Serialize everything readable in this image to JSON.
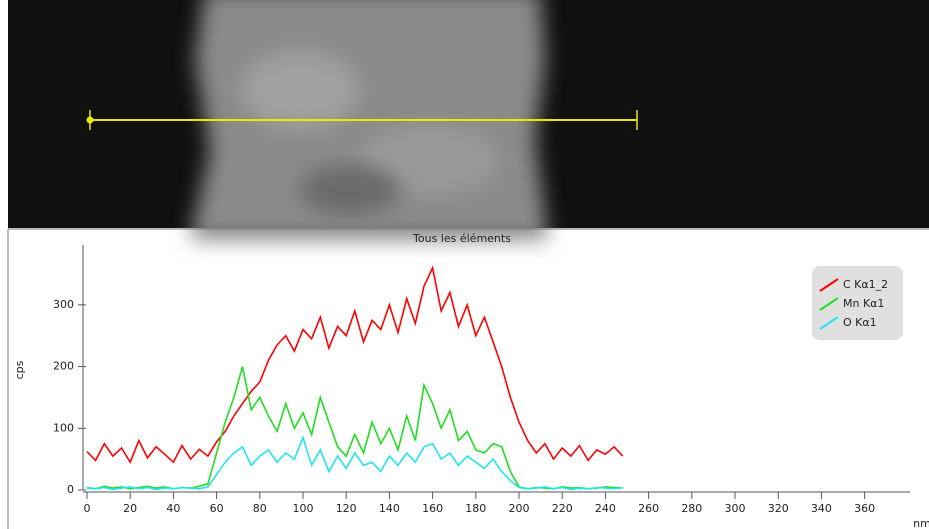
{
  "chart_data": {
    "type": "line",
    "title": "Tous les éléments",
    "y_label": "cps",
    "x_label": "nm",
    "x": [
      0,
      4,
      8,
      12,
      16,
      20,
      24,
      28,
      32,
      36,
      40,
      44,
      48,
      52,
      56,
      60,
      64,
      68,
      72,
      76,
      80,
      84,
      88,
      92,
      96,
      100,
      104,
      108,
      112,
      116,
      120,
      124,
      128,
      132,
      136,
      140,
      144,
      148,
      152,
      156,
      160,
      164,
      168,
      172,
      176,
      180,
      184,
      188,
      192,
      196,
      200,
      204,
      208,
      212,
      216,
      220,
      224,
      228,
      232,
      236,
      240,
      244,
      248
    ],
    "series": [
      {
        "name": "C Kα1_2",
        "color": "#ff0000",
        "values": [
          62,
          48,
          75,
          55,
          68,
          45,
          80,
          52,
          70,
          58,
          45,
          72,
          50,
          66,
          55,
          78,
          95,
          120,
          140,
          160,
          175,
          210,
          235,
          250,
          225,
          260,
          245,
          280,
          230,
          265,
          250,
          290,
          240,
          275,
          260,
          300,
          255,
          310,
          270,
          330,
          360,
          290,
          320,
          265,
          300,
          250,
          280,
          240,
          200,
          150,
          110,
          80,
          60,
          75,
          50,
          68,
          55,
          72,
          48,
          65,
          58,
          70,
          55
        ]
      },
      {
        "name": "Mn Kα1",
        "color": "#22dd22",
        "values": [
          4,
          2,
          6,
          3,
          5,
          2,
          4,
          6,
          3,
          5,
          2,
          4,
          3,
          6,
          10,
          60,
          110,
          150,
          200,
          130,
          150,
          120,
          95,
          140,
          100,
          125,
          90,
          150,
          110,
          70,
          55,
          90,
          60,
          110,
          75,
          100,
          65,
          120,
          80,
          170,
          140,
          100,
          130,
          80,
          95,
          65,
          60,
          75,
          70,
          30,
          5,
          2,
          4,
          3,
          2,
          5,
          3,
          4,
          2,
          3,
          5,
          4,
          3
        ]
      },
      {
        "name": "O Kα1",
        "color": "#22e5f0",
        "values": [
          3,
          2,
          4,
          1,
          3,
          5,
          2,
          4,
          1,
          3,
          2,
          4,
          3,
          2,
          5,
          25,
          45,
          60,
          70,
          40,
          55,
          65,
          45,
          60,
          50,
          85,
          40,
          65,
          30,
          55,
          35,
          60,
          40,
          45,
          30,
          55,
          40,
          60,
          45,
          70,
          75,
          50,
          60,
          40,
          55,
          45,
          35,
          50,
          30,
          15,
          4,
          2,
          3,
          5,
          2,
          4,
          1,
          3,
          2,
          4,
          3,
          2,
          4
        ]
      }
    ],
    "xlim": [
      -3,
      381
    ],
    "ylim": [
      0,
      397
    ],
    "xticks": [
      0,
      20,
      40,
      60,
      80,
      100,
      120,
      140,
      160,
      180,
      200,
      220,
      240,
      260,
      280,
      300,
      320,
      340,
      360
    ],
    "yticks": [
      0,
      100,
      200,
      300
    ],
    "legend": "top-right"
  }
}
